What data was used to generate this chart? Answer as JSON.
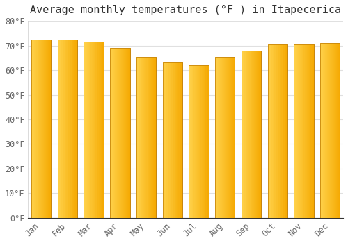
{
  "title": "Average monthly temperatures (°F ) in Itapecerica",
  "months": [
    "Jan",
    "Feb",
    "Mar",
    "Apr",
    "May",
    "Jun",
    "Jul",
    "Aug",
    "Sep",
    "Oct",
    "Nov",
    "Dec"
  ],
  "values": [
    72.5,
    72.5,
    71.5,
    69.0,
    65.5,
    63.0,
    62.0,
    65.5,
    68.0,
    70.5,
    70.5,
    71.0
  ],
  "bar_color_left": "#FFD04A",
  "bar_color_right": "#F5A800",
  "bar_edge_color": "#C8860A",
  "background_color": "#FFFFFF",
  "plot_bg_color": "#FFFFFF",
  "grid_color": "#E0E0E0",
  "ylim": [
    0,
    80
  ],
  "yticks": [
    0,
    10,
    20,
    30,
    40,
    50,
    60,
    70,
    80
  ],
  "ytick_labels": [
    "0°F",
    "10°F",
    "20°F",
    "30°F",
    "40°F",
    "50°F",
    "60°F",
    "70°F",
    "80°F"
  ],
  "title_fontsize": 11,
  "tick_fontsize": 8.5,
  "font_color": "#666666",
  "bar_width": 0.75
}
